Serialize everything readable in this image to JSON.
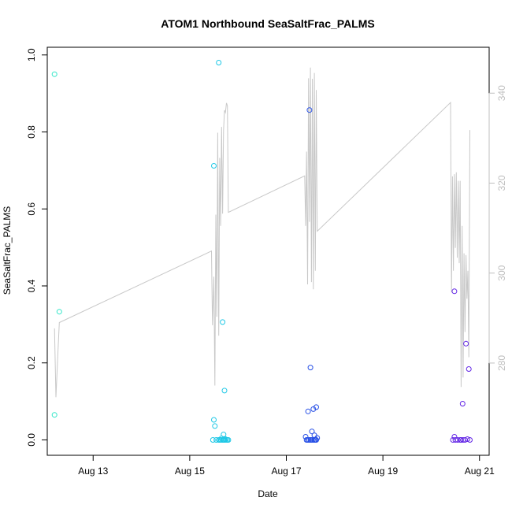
{
  "chart_data": {
    "type": "scatter",
    "title": "ATOM1 Northbound SeaSaltFrac_PALMS",
    "xlabel": "Date",
    "ylabel": "SeaSaltFrac_PALMS",
    "x_ticks": [
      "Aug 13",
      "Aug 15",
      "Aug 17",
      "Aug 19",
      "Aug 21"
    ],
    "x_tick_values": [
      13,
      15,
      17,
      19,
      21
    ],
    "xlim": [
      12.05,
      21.2
    ],
    "ylim": [
      -0.04,
      1.02
    ],
    "y_ticks": [
      "0.0",
      "0.2",
      "0.4",
      "0.6",
      "0.8",
      "1.0"
    ],
    "y_tick_values": [
      0,
      0.2,
      0.4,
      0.6,
      0.8,
      1.0
    ],
    "right_axis": {
      "ticks": [
        "280",
        "300",
        "320",
        "340"
      ],
      "tick_values": [
        280,
        300,
        320,
        340
      ],
      "ylim": [
        259.5,
        350.2
      ],
      "color": "#bfbfbf"
    },
    "series": [
      {
        "color": "#33e6c8",
        "x": [
          12.2,
          12.2,
          12.3
        ],
        "y": [
          0.95,
          0.065,
          0.333
        ]
      },
      {
        "color": "#1ec8e6",
        "x": [
          15.6,
          15.5,
          15.68,
          15.5,
          15.72,
          15.52,
          15.7,
          15.48,
          15.55,
          15.6,
          15.62,
          15.65,
          15.68,
          15.7,
          15.72,
          15.75,
          15.78,
          15.8,
          15.66,
          15.74
        ],
        "y": [
          0.98,
          0.712,
          0.306,
          0.052,
          0.128,
          0.036,
          0.014,
          0.0,
          0.0,
          0.0,
          0.0,
          0.0,
          0.0,
          0.0,
          0.0,
          0.0,
          0.0,
          0.0,
          0.004,
          0.002
        ]
      },
      {
        "color": "#2850e6",
        "x": [
          17.48,
          17.5,
          17.45,
          17.56,
          17.62,
          17.53,
          17.4,
          17.42,
          17.44,
          17.47,
          17.5,
          17.52,
          17.55,
          17.58,
          17.6,
          17.62,
          17.64,
          17.58
        ],
        "y": [
          0.857,
          0.188,
          0.074,
          0.08,
          0.085,
          0.022,
          0.008,
          0.0,
          0.0,
          0.0,
          0.0,
          0.0,
          0.0,
          0.0,
          0.0,
          0.0,
          0.005,
          0.012
        ]
      },
      {
        "color": "#6428e6",
        "x": [
          20.48,
          20.72,
          20.78,
          20.65,
          20.48,
          20.45,
          20.5,
          20.55,
          20.6,
          20.62,
          20.66,
          20.7,
          20.75,
          20.8
        ],
        "y": [
          0.386,
          0.25,
          0.184,
          0.094,
          0.008,
          0.0,
          0.0,
          0.0,
          0.0,
          0.0,
          0.0,
          0.0,
          0.002,
          0.0
        ]
      }
    ],
    "right_line": {
      "color": "#c8c8c8",
      "x": [
        12.2,
        12.23,
        12.27,
        12.3,
        15.45,
        15.47,
        15.5,
        15.52,
        15.54,
        15.56,
        15.58,
        15.6,
        15.62,
        15.64,
        15.66,
        15.68,
        15.7,
        15.72,
        15.74,
        15.76,
        15.78,
        15.8,
        17.38,
        17.4,
        17.42,
        17.44,
        17.46,
        17.48,
        17.5,
        17.52,
        17.54,
        17.56,
        17.58,
        17.6,
        17.62,
        17.64,
        20.4,
        20.42,
        20.44,
        20.46,
        20.48,
        20.5,
        20.52,
        20.54,
        20.56,
        20.58,
        20.6,
        20.62,
        20.64,
        20.66,
        20.68,
        20.7,
        20.72,
        20.74,
        20.76,
        20.78,
        20.8
      ],
      "y": [
        287.7,
        272.4,
        282.2,
        289.0,
        304.9,
        288.4,
        299.2,
        275.0,
        313.0,
        290.3,
        331.2,
        286.1,
        325.6,
        310.5,
        332.5,
        313.2,
        331.8,
        336.2,
        335.7,
        337.8,
        337.2,
        313.5,
        321.6,
        310.5,
        327.0,
        297.5,
        343.3,
        311.4,
        345.7,
        298.0,
        343.2,
        296.4,
        344.5,
        300.5,
        340.7,
        309.3,
        337.9,
        295.7,
        321.5,
        300.5,
        322.0,
        305.6,
        322.4,
        303.4,
        320.5,
        302.2,
        320.5,
        274.7,
        310.5,
        276.8,
        304.4,
        286.9,
        304.0,
        294.3,
        300.5,
        281.3,
        331.8
      ]
    }
  }
}
